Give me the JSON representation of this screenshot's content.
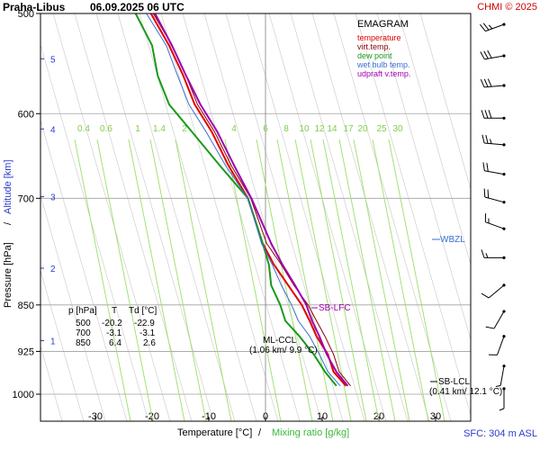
{
  "station": "Praha-Libus",
  "datetime": "06.09.2025 06 UTC",
  "credit": "CHMI © 2025",
  "emagram_title": "EMAGRAM",
  "legend": [
    {
      "label": "temperature",
      "color": "#e00000"
    },
    {
      "label": "virt.temp.",
      "color": "#8b0000"
    },
    {
      "label": "dew point",
      "color": "#1a9a1a"
    },
    {
      "label": "wet bulb temp.",
      "color": "#3a6fd0"
    },
    {
      "label": "udpraft v.temp.",
      "color": "#a000b0"
    }
  ],
  "ylabel_pressure": "Pressure [hPa]",
  "ylabel_sep": "/",
  "ylabel_altitude": "Altitude [km]",
  "xlabel_temp": "Temperature [°C]",
  "xlabel_sep": "/",
  "xlabel_mixing": "Mixing ratio [g/kg]",
  "sfc_label": "SFC: 304 m ASL",
  "annotations": {
    "sb_lfc": "SB-LFC",
    "ml_ccl": "ML-CCL",
    "ml_ccl_detail": "(1.06 km/ 9.9 °C)",
    "wbzl": "WBZL",
    "sb_lcl": "SB-LCL",
    "sb_lcl_detail": "(0.41 km/ 12.1 °C)"
  },
  "table": {
    "header": [
      "p [hPa]",
      "T",
      "Td [°C]"
    ],
    "rows": [
      [
        "500",
        "-20.2",
        "-22.9"
      ],
      [
        "700",
        "-3.1",
        "-3.1"
      ],
      [
        "850",
        "6.4",
        "2.6"
      ]
    ]
  },
  "chart_data": {
    "type": "line",
    "title": "EMAGRAM",
    "xlabel": "Temperature [°C] / Mixing ratio [g/kg]",
    "ylabel": "Pressure [hPa] / Altitude [km]",
    "x_ticks": [
      -30,
      -20,
      -10,
      0,
      10,
      20,
      30
    ],
    "y_ticks": [
      500,
      600,
      700,
      850,
      925,
      1000
    ],
    "altitude_ticks": [
      1,
      2,
      3,
      4,
      5
    ],
    "mixing_ratio_labels": [
      "0.4",
      "0.6",
      "1",
      "1.4",
      "2",
      "4",
      "6",
      "8",
      "10",
      "12",
      "14",
      "17",
      "20",
      "25",
      "30"
    ],
    "series": [
      {
        "name": "temperature",
        "points": [
          [
            14.2,
            985
          ],
          [
            12.0,
            960
          ],
          [
            11.0,
            930
          ],
          [
            9.0,
            900
          ],
          [
            7.8,
            875
          ],
          [
            6.4,
            850
          ],
          [
            4.0,
            820
          ],
          [
            1.5,
            790
          ],
          [
            -0.5,
            760
          ],
          [
            -3.1,
            700
          ],
          [
            -6.5,
            660
          ],
          [
            -9.5,
            620
          ],
          [
            -12.5,
            590
          ],
          [
            -14.5,
            560
          ],
          [
            -17.0,
            530
          ],
          [
            -20.2,
            500
          ]
        ]
      },
      {
        "name": "virt.temp.",
        "points": [
          [
            15.0,
            985
          ],
          [
            13.0,
            960
          ],
          [
            12.0,
            930
          ],
          [
            10.5,
            900
          ],
          [
            9.0,
            875
          ],
          [
            7.5,
            850
          ],
          [
            5.0,
            820
          ],
          [
            2.8,
            790
          ],
          [
            0.2,
            760
          ],
          [
            -2.6,
            700
          ],
          [
            -6.0,
            660
          ],
          [
            -9.0,
            620
          ],
          [
            -12.0,
            590
          ],
          [
            -14.0,
            560
          ],
          [
            -16.5,
            530
          ],
          [
            -19.8,
            500
          ]
        ]
      },
      {
        "name": "dew point",
        "points": [
          [
            12.5,
            985
          ],
          [
            10.5,
            960
          ],
          [
            8.5,
            930
          ],
          [
            6.0,
            900
          ],
          [
            3.5,
            875
          ],
          [
            2.6,
            850
          ],
          [
            1.0,
            820
          ],
          [
            0.6,
            790
          ],
          [
            -0.5,
            760
          ],
          [
            -3.1,
            700
          ],
          [
            -8.0,
            660
          ],
          [
            -13.0,
            620
          ],
          [
            -17.0,
            590
          ],
          [
            -19.0,
            560
          ],
          [
            -20.0,
            530
          ],
          [
            -22.9,
            500
          ]
        ]
      },
      {
        "name": "wet bulb temp.",
        "points": [
          [
            13.2,
            985
          ],
          [
            11.0,
            960
          ],
          [
            9.5,
            930
          ],
          [
            7.8,
            900
          ],
          [
            5.8,
            875
          ],
          [
            4.6,
            850
          ],
          [
            2.8,
            820
          ],
          [
            1.2,
            790
          ],
          [
            -0.7,
            760
          ],
          [
            -3.1,
            700
          ],
          [
            -7.0,
            660
          ],
          [
            -10.5,
            620
          ],
          [
            -13.5,
            590
          ],
          [
            -15.5,
            560
          ],
          [
            -17.5,
            530
          ],
          [
            -21.0,
            500
          ]
        ]
      },
      {
        "name": "udpraft v.temp.",
        "points": [
          [
            14.5,
            985
          ],
          [
            12.5,
            960
          ],
          [
            10.8,
            930
          ],
          [
            9.5,
            900
          ],
          [
            8.2,
            875
          ],
          [
            7.2,
            850
          ],
          [
            5.2,
            820
          ],
          [
            3.0,
            790
          ],
          [
            1.0,
            760
          ],
          [
            -2.5,
            700
          ],
          [
            -5.5,
            660
          ],
          [
            -8.5,
            620
          ],
          [
            -11.5,
            590
          ],
          [
            -14.0,
            560
          ],
          [
            -16.5,
            530
          ],
          [
            -19.5,
            500
          ]
        ]
      }
    ],
    "wind_barbs": [
      {
        "p": 510,
        "dir": 250,
        "spd": 25
      },
      {
        "p": 540,
        "dir": 260,
        "spd": 30
      },
      {
        "p": 570,
        "dir": 265,
        "spd": 30
      },
      {
        "p": 605,
        "dir": 270,
        "spd": 30
      },
      {
        "p": 635,
        "dir": 275,
        "spd": 25
      },
      {
        "p": 670,
        "dir": 280,
        "spd": 20
      },
      {
        "p": 705,
        "dir": 285,
        "spd": 20
      },
      {
        "p": 740,
        "dir": 290,
        "spd": 15
      },
      {
        "p": 780,
        "dir": 270,
        "spd": 15
      },
      {
        "p": 820,
        "dir": 230,
        "spd": 10
      },
      {
        "p": 860,
        "dir": 210,
        "spd": 10
      },
      {
        "p": 900,
        "dir": 200,
        "spd": 10
      },
      {
        "p": 950,
        "dir": 190,
        "spd": 5
      },
      {
        "p": 990,
        "dir": 180,
        "spd": 5
      }
    ]
  }
}
